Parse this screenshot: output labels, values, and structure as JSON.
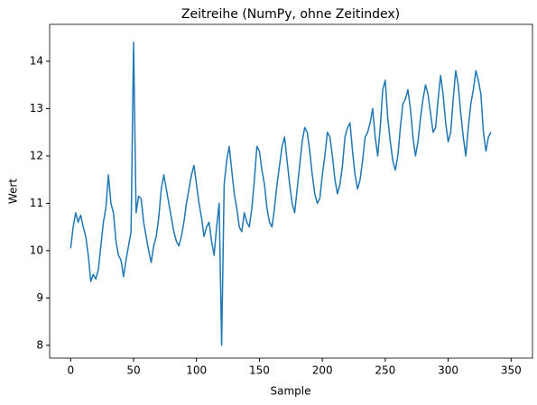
{
  "chart_data": {
    "type": "line",
    "title": "Zeitreihe (NumPy, ohne Zeitindex)",
    "x_label": "Sample",
    "y_label": "Wert",
    "x": [
      0,
      2,
      4,
      6,
      8,
      10,
      12,
      14,
      16,
      18,
      20,
      22,
      24,
      26,
      28,
      30,
      32,
      34,
      36,
      38,
      40,
      42,
      44,
      46,
      48,
      50,
      52,
      54,
      56,
      58,
      60,
      62,
      64,
      66,
      68,
      70,
      72,
      74,
      76,
      78,
      80,
      82,
      84,
      86,
      88,
      90,
      92,
      94,
      96,
      98,
      100,
      102,
      104,
      106,
      108,
      110,
      112,
      114,
      116,
      118,
      120,
      122,
      124,
      126,
      128,
      130,
      132,
      134,
      136,
      138,
      140,
      142,
      144,
      146,
      148,
      150,
      152,
      154,
      156,
      158,
      160,
      162,
      164,
      166,
      168,
      170,
      172,
      174,
      176,
      178,
      180,
      182,
      184,
      186,
      188,
      190,
      192,
      194,
      196,
      198,
      200,
      202,
      204,
      206,
      208,
      210,
      212,
      214,
      216,
      218,
      220,
      222,
      224,
      226,
      228,
      230,
      232,
      234,
      236,
      238,
      240,
      242,
      244,
      246,
      248,
      250,
      252,
      254,
      256,
      258,
      260,
      262,
      264,
      266,
      268,
      270,
      272,
      274,
      276,
      278,
      280,
      282,
      284,
      286,
      288,
      290,
      292,
      294,
      296,
      298,
      300,
      302,
      304,
      306,
      308,
      310,
      312,
      314,
      316,
      318,
      320,
      322,
      324,
      326,
      328,
      330,
      332,
      334
    ],
    "series": [
      {
        "name": "Wert",
        "color": "#1f77b4",
        "values": [
          10.05,
          10.5,
          10.8,
          10.6,
          10.75,
          10.5,
          10.3,
          9.9,
          9.35,
          9.5,
          9.4,
          9.6,
          10.1,
          10.6,
          10.9,
          11.6,
          11.0,
          10.8,
          10.2,
          9.9,
          9.8,
          9.45,
          9.8,
          10.1,
          10.4,
          14.4,
          10.8,
          11.15,
          11.1,
          10.6,
          10.3,
          10.0,
          9.75,
          10.1,
          10.3,
          10.7,
          11.3,
          11.6,
          11.3,
          11.0,
          10.7,
          10.4,
          10.2,
          10.1,
          10.3,
          10.6,
          11.0,
          11.3,
          11.6,
          11.8,
          11.4,
          11.0,
          10.7,
          10.3,
          10.5,
          10.6,
          10.2,
          9.9,
          10.5,
          11.0,
          8.0,
          11.4,
          11.9,
          12.2,
          11.7,
          11.2,
          10.9,
          10.5,
          10.4,
          10.8,
          10.6,
          10.5,
          10.9,
          11.5,
          12.2,
          12.1,
          11.7,
          11.4,
          10.9,
          10.6,
          10.5,
          10.9,
          11.4,
          11.8,
          12.2,
          12.4,
          11.9,
          11.4,
          11.0,
          10.8,
          11.3,
          11.8,
          12.3,
          12.6,
          12.5,
          12.1,
          11.6,
          11.2,
          11.0,
          11.1,
          11.6,
          12.0,
          12.5,
          12.4,
          12.0,
          11.5,
          11.2,
          11.4,
          11.8,
          12.4,
          12.6,
          12.7,
          12.1,
          11.6,
          11.3,
          11.5,
          11.9,
          12.4,
          12.5,
          12.7,
          13.0,
          12.4,
          12.0,
          12.6,
          13.4,
          13.6,
          12.8,
          12.3,
          11.9,
          11.7,
          12.0,
          12.6,
          13.1,
          13.2,
          13.4,
          13.0,
          12.4,
          12.0,
          12.3,
          12.8,
          13.2,
          13.5,
          13.3,
          12.9,
          12.5,
          12.6,
          13.2,
          13.7,
          13.3,
          12.7,
          12.3,
          12.5,
          13.2,
          13.8,
          13.5,
          12.9,
          12.4,
          12.0,
          12.6,
          13.1,
          13.4,
          13.8,
          13.6,
          13.3,
          12.5,
          12.1,
          12.4,
          12.5
        ]
      }
    ],
    "xlim": [
      -16.7,
      367
    ],
    "ylim": [
      7.73,
      14.78
    ],
    "xticks": [
      0,
      50,
      100,
      150,
      200,
      250,
      300,
      350
    ],
    "yticks": [
      8,
      9,
      10,
      11,
      12,
      13,
      14
    ]
  }
}
